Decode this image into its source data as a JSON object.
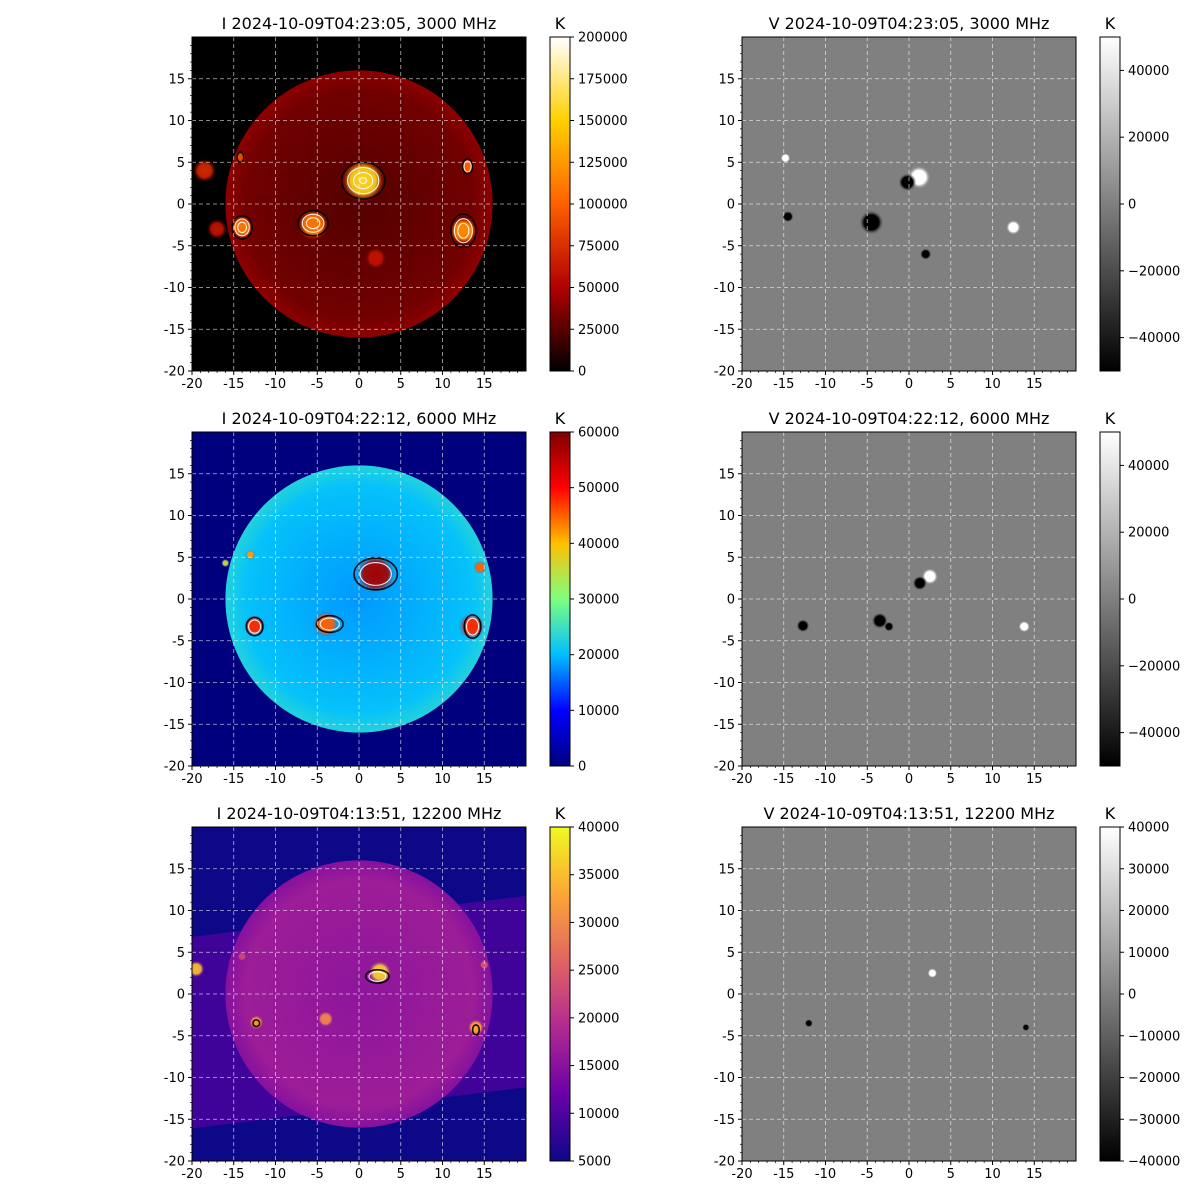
{
  "figure": {
    "grid": true
  },
  "chart_data": [
    {
      "type": "heatmap",
      "title": "I 2024-10-09T04:23:05, 3000 MHz",
      "colormap": "hot",
      "colormap_colors": [
        "#000000",
        "#b00000",
        "#ff6000",
        "#ffd000",
        "#ffffff"
      ],
      "colorbar": {
        "label": "K",
        "range": [
          0,
          200000
        ],
        "ticks": [
          0,
          25000,
          50000,
          75000,
          100000,
          125000,
          150000,
          175000,
          200000
        ]
      },
      "xlim": [
        -20,
        20
      ],
      "ylim": [
        -20,
        20
      ],
      "x_ticks": [
        "-20",
        "-15",
        "-10",
        "-5",
        "0",
        "5",
        "10",
        "15"
      ],
      "y_ticks": [
        "-20",
        "-15",
        "-10",
        "-5",
        "0",
        "5",
        "10",
        "15"
      ],
      "disk_radius": 16,
      "sources": [
        {
          "x": 0.5,
          "y": 2.8,
          "r": 2.6,
          "level": 0.78
        },
        {
          "x": -5.5,
          "y": -2.5,
          "r": 1.9,
          "level": 0.55
        },
        {
          "x": -14,
          "y": -2.8,
          "r": 1.4,
          "level": 0.55
        },
        {
          "x": 12.5,
          "y": -3.2,
          "r": 1.7,
          "level": 0.6
        },
        {
          "x": 13,
          "y": 4.5,
          "r": 0.9,
          "level": 0.5
        },
        {
          "x": -14.2,
          "y": 5.6,
          "r": 0.7,
          "level": 0.45
        },
        {
          "x": -18.5,
          "y": 4.0,
          "r": 1.4,
          "level": 0.35
        },
        {
          "x": 2,
          "y": -6.5,
          "r": 1.3,
          "level": 0.3
        },
        {
          "x": -17,
          "y": -3,
          "r": 1.2,
          "level": 0.3
        }
      ],
      "contours": [
        {
          "x": 0.5,
          "y": 2.8,
          "rx": 2.6,
          "ry": 2.2,
          "n": 4
        },
        {
          "x": -5.5,
          "y": -2.3,
          "rx": 1.8,
          "ry": 1.5,
          "n": 3
        },
        {
          "x": -14,
          "y": -2.8,
          "rx": 1.2,
          "ry": 1.4,
          "n": 3
        },
        {
          "x": 12.5,
          "y": -3.2,
          "rx": 1.5,
          "ry": 2.0,
          "n": 3
        },
        {
          "x": 13,
          "y": 4.5,
          "rx": 0.6,
          "ry": 0.9,
          "n": 2
        },
        {
          "x": -14.2,
          "y": 5.6,
          "rx": 0.4,
          "ry": 0.6,
          "n": 1
        }
      ]
    },
    {
      "type": "heatmap",
      "title": "V 2024-10-09T04:23:05, 3000 MHz",
      "colormap": "gray",
      "colormap_colors": [
        "#000000",
        "#ffffff"
      ],
      "colorbar": {
        "label": "K",
        "range": [
          -50000,
          50000
        ],
        "ticks": [
          -40000,
          -20000,
          0,
          20000,
          40000
        ]
      },
      "xlim": [
        -20,
        20
      ],
      "ylim": [
        -20,
        20
      ],
      "x_ticks": [
        "-20",
        "-15",
        "-10",
        "-5",
        "0",
        "5",
        "10",
        "15"
      ],
      "y_ticks": [
        "-20",
        "-15",
        "-10",
        "-5",
        "0",
        "5",
        "10",
        "15"
      ],
      "sources": [
        {
          "x": 1.2,
          "y": 3.2,
          "r": 1.4,
          "sign": 1
        },
        {
          "x": -0.2,
          "y": 2.6,
          "r": 1.1,
          "sign": -1
        },
        {
          "x": -4.5,
          "y": -2.2,
          "r": 1.5,
          "sign": -1
        },
        {
          "x": 12.5,
          "y": -2.8,
          "r": 0.9,
          "sign": 1
        },
        {
          "x": -14.5,
          "y": -1.5,
          "r": 0.7,
          "sign": -1
        },
        {
          "x": -14.8,
          "y": 5.5,
          "r": 0.6,
          "sign": 1
        },
        {
          "x": 2,
          "y": -6,
          "r": 0.7,
          "sign": -1
        }
      ]
    },
    {
      "type": "heatmap",
      "title": "I 2024-10-09T04:22:12, 6000 MHz",
      "colormap": "jet",
      "colormap_colors": [
        "#00007f",
        "#0000ff",
        "#00bfff",
        "#7fff7f",
        "#ffbf00",
        "#ff0000",
        "#7f0000"
      ],
      "colorbar": {
        "label": "K",
        "range": [
          0,
          60000
        ],
        "ticks": [
          0,
          10000,
          20000,
          30000,
          40000,
          50000,
          60000
        ]
      },
      "xlim": [
        -20,
        20
      ],
      "ylim": [
        -20,
        20
      ],
      "x_ticks": [
        "-20",
        "-15",
        "-10",
        "-5",
        "0",
        "5",
        "10",
        "15"
      ],
      "y_ticks": [
        "-20",
        "-15",
        "-10",
        "-5",
        "0",
        "5",
        "10",
        "15"
      ],
      "disk_radius": 16,
      "sources": [
        {
          "x": 2,
          "y": 3.0,
          "r": 2.5,
          "level": 0.95
        },
        {
          "x": -4,
          "y": -3.0,
          "r": 1.6,
          "level": 0.75
        },
        {
          "x": -12.5,
          "y": -3.2,
          "r": 1.3,
          "level": 0.8
        },
        {
          "x": 13.5,
          "y": -3.3,
          "r": 1.6,
          "level": 0.8
        },
        {
          "x": 14.5,
          "y": 3.8,
          "r": 0.8,
          "level": 0.75
        },
        {
          "x": -13,
          "y": 5.3,
          "r": 0.6,
          "level": 0.7
        },
        {
          "x": -16,
          "y": 4.3,
          "r": 0.5,
          "level": 0.6
        }
      ],
      "contours": [
        {
          "x": 2,
          "y": 3.0,
          "rx": 2.6,
          "ry": 1.9,
          "n": 2
        },
        {
          "x": -3.5,
          "y": -3.0,
          "rx": 1.6,
          "ry": 1.0,
          "n": 2
        },
        {
          "x": -12.5,
          "y": -3.3,
          "rx": 1.0,
          "ry": 1.1,
          "n": 2
        },
        {
          "x": 13.6,
          "y": -3.3,
          "rx": 1.0,
          "ry": 1.4,
          "n": 2
        }
      ]
    },
    {
      "type": "heatmap",
      "title": "V 2024-10-09T04:22:12, 6000 MHz",
      "colormap": "gray",
      "colormap_colors": [
        "#000000",
        "#ffffff"
      ],
      "colorbar": {
        "label": "K",
        "range": [
          -50000,
          50000
        ],
        "ticks": [
          -40000,
          -20000,
          0,
          20000,
          40000
        ]
      },
      "xlim": [
        -20,
        20
      ],
      "ylim": [
        -20,
        20
      ],
      "x_ticks": [
        "-20",
        "-15",
        "-10",
        "-5",
        "0",
        "5",
        "10",
        "15"
      ],
      "y_ticks": [
        "-20",
        "-15",
        "-10",
        "-5",
        "0",
        "5",
        "10",
        "15"
      ],
      "sources": [
        {
          "x": 2.5,
          "y": 2.7,
          "r": 1.0,
          "sign": 1
        },
        {
          "x": 1.3,
          "y": 1.9,
          "r": 0.9,
          "sign": -1
        },
        {
          "x": -3.5,
          "y": -2.6,
          "r": 1.0,
          "sign": -1
        },
        {
          "x": -2.4,
          "y": -3.3,
          "r": 0.6,
          "sign": -1
        },
        {
          "x": -12.7,
          "y": -3.2,
          "r": 0.8,
          "sign": -1
        },
        {
          "x": 13.8,
          "y": -3.3,
          "r": 0.7,
          "sign": 1
        }
      ]
    },
    {
      "type": "heatmap",
      "title": "I 2024-10-09T04:13:51, 12200 MHz",
      "colormap": "plasma",
      "colormap_colors": [
        "#0d0887",
        "#6a00a8",
        "#b12a90",
        "#e16462",
        "#fca636",
        "#f0f921"
      ],
      "colorbar": {
        "label": "K",
        "range": [
          5000,
          40000
        ],
        "ticks": [
          5000,
          10000,
          15000,
          20000,
          25000,
          30000,
          35000,
          40000
        ]
      },
      "xlim": [
        -20,
        20
      ],
      "ylim": [
        -20,
        20
      ],
      "x_ticks": [
        "-20",
        "-15",
        "-10",
        "-5",
        "0",
        "5",
        "10",
        "15"
      ],
      "y_ticks": [
        "-20",
        "-15",
        "-10",
        "-5",
        "0",
        "5",
        "10",
        "15"
      ],
      "disk_radius": 16,
      "sources": [
        {
          "x": 2.5,
          "y": 2.6,
          "r": 1.4,
          "level": 0.9
        },
        {
          "x": -4,
          "y": -3.0,
          "r": 1.0,
          "level": 0.7
        },
        {
          "x": -12.3,
          "y": -3.4,
          "r": 0.9,
          "level": 0.75
        },
        {
          "x": 14,
          "y": -4.0,
          "r": 1.0,
          "level": 0.8
        },
        {
          "x": -19.5,
          "y": 3.0,
          "r": 1.0,
          "level": 0.85
        },
        {
          "x": 15,
          "y": 3.5,
          "r": 0.6,
          "level": 0.55
        },
        {
          "x": -14,
          "y": 4.5,
          "r": 0.6,
          "level": 0.5
        }
      ],
      "contours": [
        {
          "x": 2.2,
          "y": 2.1,
          "rx": 1.4,
          "ry": 0.8,
          "n": 2
        },
        {
          "x": -12.3,
          "y": -3.5,
          "rx": 0.4,
          "ry": 0.4,
          "n": 1
        },
        {
          "x": 14,
          "y": -4.3,
          "rx": 0.4,
          "ry": 0.6,
          "n": 1
        }
      ]
    },
    {
      "type": "heatmap",
      "title": "V 2024-10-09T04:13:51, 12200 MHz",
      "colormap": "gray",
      "colormap_colors": [
        "#000000",
        "#ffffff"
      ],
      "colorbar": {
        "label": "K",
        "range": [
          -40000,
          40000
        ],
        "ticks": [
          -40000,
          -30000,
          -20000,
          -10000,
          0,
          10000,
          20000,
          30000,
          40000
        ]
      },
      "xlim": [
        -20,
        20
      ],
      "ylim": [
        -20,
        20
      ],
      "x_ticks": [
        "-20",
        "-15",
        "-10",
        "-5",
        "0",
        "5",
        "10",
        "15"
      ],
      "y_ticks": [
        "-20",
        "-15",
        "-10",
        "-5",
        "0",
        "5",
        "10",
        "15"
      ],
      "sources": [
        {
          "x": 2.8,
          "y": 2.5,
          "r": 0.6,
          "sign": 1
        },
        {
          "x": -12,
          "y": -3.5,
          "r": 0.5,
          "sign": -1
        },
        {
          "x": 14,
          "y": -4.0,
          "r": 0.45,
          "sign": -1
        }
      ]
    }
  ]
}
